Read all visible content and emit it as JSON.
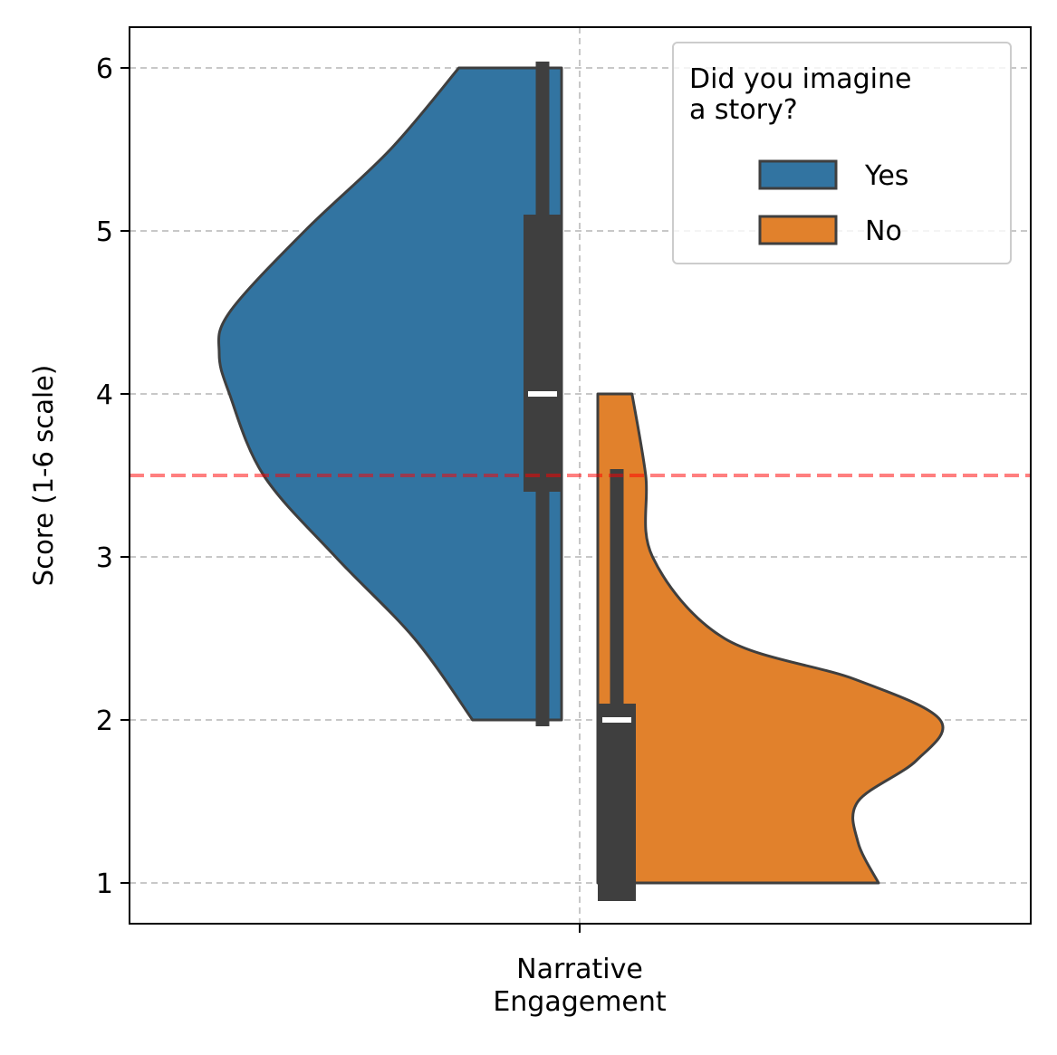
{
  "chart_data": {
    "type": "violin",
    "title": "",
    "xlabel": "",
    "ylabel": "Score (1-6 scale)",
    "categories": [
      "Narrative\nEngagement"
    ],
    "ylim": [
      0.75,
      6.25
    ],
    "yticks": [
      1,
      2,
      3,
      4,
      5,
      6
    ],
    "grid": true,
    "reference_line": {
      "y": 3.5,
      "color": "#ff0000",
      "style": "dashed"
    },
    "legend": {
      "title": "Did you imagine\na story?",
      "position": "top-right",
      "entries": [
        "Yes",
        "No"
      ]
    },
    "series": [
      {
        "name": "Yes",
        "color": "#3274a1",
        "side": "left",
        "range": [
          2,
          6
        ],
        "median": 4,
        "q1": 3.4,
        "q3": 5.1,
        "whisker": [
          2,
          6
        ],
        "density": [
          [
            2.0,
            0.26
          ],
          [
            2.5,
            0.43
          ],
          [
            3.0,
            0.66
          ],
          [
            3.5,
            0.87
          ],
          [
            4.0,
            0.97
          ],
          [
            4.25,
            1.0
          ],
          [
            4.5,
            0.97
          ],
          [
            5.0,
            0.75
          ],
          [
            5.5,
            0.5
          ],
          [
            6.0,
            0.3
          ]
        ]
      },
      {
        "name": "No",
        "color": "#e1812c",
        "side": "right",
        "range": [
          1,
          4
        ],
        "median": 2,
        "q1": 1,
        "q3": 2.1,
        "whisker": [
          1,
          3.5
        ],
        "density": [
          [
            1.0,
            0.82
          ],
          [
            1.25,
            0.76
          ],
          [
            1.5,
            0.76
          ],
          [
            1.75,
            0.93
          ],
          [
            2.0,
            1.0
          ],
          [
            2.25,
            0.75
          ],
          [
            2.5,
            0.37
          ],
          [
            3.0,
            0.16
          ],
          [
            3.5,
            0.14
          ],
          [
            4.0,
            0.1
          ]
        ]
      }
    ]
  }
}
